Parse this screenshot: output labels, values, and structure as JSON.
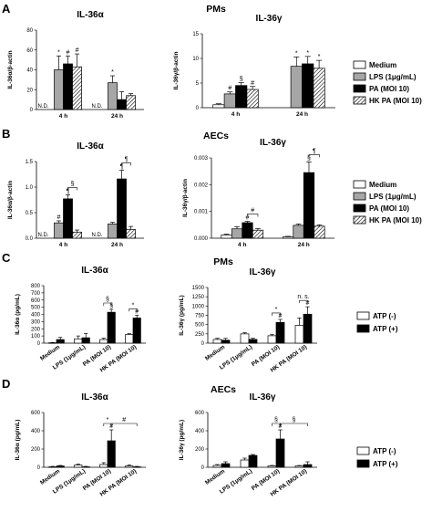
{
  "panel_labels": [
    "A",
    "B",
    "C",
    "D"
  ],
  "row_titles": [
    "PMs",
    "AECs",
    "PMs",
    "AECs"
  ],
  "patterns": {
    "Medium": "white",
    "LPS (1μg/mL)": "gray",
    "PA (MOI 10)": "black",
    "HK PA (MOI 10)": "hatch",
    "ATP (-)": "white",
    "ATP (+)": "black"
  },
  "legends": {
    "AB": [
      "Medium",
      "LPS (1μg/mL)",
      "PA (MOI 10)",
      "HK PA (MOI 10)"
    ],
    "CD": [
      "ATP (-)",
      "ATP (+)"
    ]
  },
  "chart_data": [
    {
      "id": "A1",
      "row": 0,
      "panel_label": "A",
      "type": "bar",
      "title": "IL-36α",
      "ylabel": "IL-36α/β-actin",
      "ylim": [
        0,
        80
      ],
      "yticks": [
        0,
        20,
        40,
        60,
        80
      ],
      "groups": [
        {
          "label": "4 h",
          "values": [
            null,
            40,
            46,
            43
          ],
          "errors": [
            null,
            14,
            8,
            13
          ],
          "marks": [
            "N.D.",
            "*",
            "#",
            "#"
          ]
        },
        {
          "label": "24 h",
          "values": [
            null,
            27,
            10,
            14
          ],
          "errors": [
            null,
            7,
            8,
            2
          ],
          "marks": [
            "N.D.",
            "*",
            "",
            ""
          ]
        }
      ]
    },
    {
      "id": "A2",
      "row": 0,
      "type": "bar",
      "title": "IL-36γ",
      "ylabel": "IL-36γ/β-actin",
      "ylim": [
        0,
        15
      ],
      "yticks": [
        0,
        5,
        10,
        15
      ],
      "groups": [
        {
          "label": "4 h",
          "values": [
            0.6,
            2.8,
            4.5,
            3.7
          ],
          "errors": [
            0.2,
            0.4,
            0.6,
            0.6
          ],
          "marks": [
            "",
            "#",
            "§",
            "#"
          ]
        },
        {
          "label": "24 h",
          "values": [
            null,
            8.4,
            8.9,
            8.0
          ],
          "errors": [
            null,
            1.9,
            1.5,
            1.6
          ],
          "marks": [
            "",
            "*",
            "*",
            "*"
          ]
        }
      ]
    },
    {
      "id": "B1",
      "row": 1,
      "panel_label": "B",
      "type": "bar",
      "title": "IL-36α",
      "ylabel": "IL-36α/β-actin",
      "ylim": [
        0,
        1.5
      ],
      "yticks": [
        0.0,
        0.5,
        1.0,
        1.5
      ],
      "groups": [
        {
          "label": "4 h",
          "values": [
            null,
            0.3,
            0.77,
            0.12
          ],
          "errors": [
            null,
            0.04,
            0.08,
            0.04
          ],
          "marks": [
            "N.D.",
            "#",
            "¶",
            ""
          ]
        },
        {
          "label": "24 h",
          "values": [
            null,
            0.28,
            1.16,
            0.17
          ],
          "errors": [
            null,
            0.03,
            0.17,
            0.06
          ],
          "marks": [
            "N.D.",
            "",
            "¶",
            ""
          ]
        }
      ],
      "brackets": [
        {
          "group": 0,
          "from": 2,
          "to": 3,
          "label": "§"
        },
        {
          "group": 1,
          "from": 2,
          "to": 3,
          "label": "¶"
        }
      ]
    },
    {
      "id": "B2",
      "row": 1,
      "type": "bar",
      "title": "IL-36γ",
      "ylabel": "IL-36γ/β-actin",
      "ylim": [
        0,
        0.003
      ],
      "yticks": [
        0.0,
        0.001,
        0.002,
        0.003
      ],
      "groups": [
        {
          "label": "4 h",
          "values": [
            0.00012,
            0.00035,
            0.00058,
            0.0003
          ],
          "errors": [
            3e-05,
            8e-05,
            5e-05,
            6e-05
          ],
          "marks": [
            "",
            "",
            "#",
            ""
          ]
        },
        {
          "label": "24 h",
          "values": [
            5e-05,
            0.00048,
            0.00245,
            0.00045
          ],
          "errors": [
            2e-05,
            5e-05,
            0.0004,
            5e-05
          ],
          "marks": [
            "",
            "",
            "§",
            ""
          ]
        }
      ],
      "brackets": [
        {
          "group": 0,
          "from": 2,
          "to": 3,
          "label": "#"
        },
        {
          "group": 1,
          "from": 2,
          "to": 3,
          "label": "¶"
        }
      ]
    },
    {
      "id": "C1",
      "row": 2,
      "panel_label": "C",
      "type": "bar",
      "title": "IL-36α",
      "ylabel": "IL-36α (pg/mL)",
      "ylim": [
        0,
        800
      ],
      "yticks": [
        0,
        100,
        200,
        300,
        400,
        500,
        600,
        700,
        800
      ],
      "categories": [
        "Medium",
        "LPS (1μg/mL)",
        "PA (MOI 10)",
        "HK PA (MOI 10)"
      ],
      "series": [
        {
          "name": "ATP (-)",
          "values": [
            5,
            60,
            50,
            120
          ],
          "errors": [
            5,
            40,
            20,
            12
          ]
        },
        {
          "name": "ATP (+)",
          "values": [
            50,
            75,
            430,
            350
          ],
          "errors": [
            30,
            60,
            40,
            40
          ]
        }
      ],
      "marks": [
        [
          "",
          ""
        ],
        [
          "",
          ""
        ],
        [
          "",
          "§"
        ],
        [
          "",
          "#"
        ]
      ],
      "brackets": [
        {
          "cat": 2,
          "label": "§"
        },
        {
          "cat": 3,
          "label": "*"
        }
      ]
    },
    {
      "id": "C2",
      "row": 2,
      "type": "bar",
      "title": "IL-36γ",
      "ylabel": "IL-36γ (pg/mL)",
      "ylim": [
        0,
        1500
      ],
      "yticks": [
        0,
        250,
        500,
        750,
        1000,
        1250,
        1500
      ],
      "categories": [
        "Medium",
        "LPS (1μg/mL)",
        "PA (MOI 10)",
        "HK PA (MOI 10)"
      ],
      "series": [
        {
          "name": "ATP (-)",
          "values": [
            100,
            250,
            200,
            480
          ],
          "errors": [
            30,
            30,
            30,
            200
          ]
        },
        {
          "name": "ATP (+)",
          "values": [
            80,
            100,
            560,
            780
          ],
          "errors": [
            50,
            30,
            80,
            200
          ]
        }
      ],
      "marks": [
        [
          "",
          ""
        ],
        [
          "",
          ""
        ],
        [
          "",
          "#"
        ],
        [
          "",
          "#"
        ]
      ],
      "brackets": [
        {
          "cat": 2,
          "label": "*"
        },
        {
          "cat": 3,
          "label": "n. s."
        }
      ]
    },
    {
      "id": "D1",
      "row": 3,
      "panel_label": "D",
      "type": "bar",
      "title": "IL-36α",
      "ylabel": "IL-36α (pg/mL)",
      "ylim": [
        0,
        600
      ],
      "yticks": [
        0,
        200,
        400,
        600
      ],
      "categories": [
        "Medium",
        "LPS (1μg/mL)",
        "PA (MOI 10)",
        "HK PA (MOI 10)"
      ],
      "series": [
        {
          "name": "ATP (-)",
          "values": [
            5,
            25,
            30,
            15
          ],
          "errors": [
            5,
            10,
            20,
            10
          ]
        },
        {
          "name": "ATP (+)",
          "values": [
            15,
            5,
            290,
            5
          ],
          "errors": [
            5,
            5,
            120,
            5
          ]
        }
      ],
      "marks": [
        [
          "",
          ""
        ],
        [
          "",
          ""
        ],
        [
          "",
          "#"
        ],
        [
          "",
          ""
        ]
      ],
      "brackets": [
        {
          "cat": 2,
          "label": "*"
        },
        {
          "cat_from": 2,
          "cat_to": 3,
          "label": "#"
        }
      ]
    },
    {
      "id": "D2",
      "row": 3,
      "type": "bar",
      "title": "IL-36γ",
      "ylabel": "IL-36γ (pg/mL)",
      "ylim": [
        0,
        600
      ],
      "yticks": [
        0,
        200,
        400,
        600
      ],
      "categories": [
        "Medium",
        "LPS (1μg/mL)",
        "PA (MOI 10)",
        "HK PA (MOI 10)"
      ],
      "series": [
        {
          "name": "ATP (-)",
          "values": [
            20,
            80,
            15,
            15
          ],
          "errors": [
            10,
            20,
            5,
            5
          ]
        },
        {
          "name": "ATP (+)",
          "values": [
            40,
            130,
            310,
            30
          ],
          "errors": [
            20,
            10,
            100,
            30
          ]
        }
      ],
      "marks": [
        [
          "",
          ""
        ],
        [
          "",
          ""
        ],
        [
          "",
          "#"
        ],
        [
          "",
          ""
        ]
      ],
      "brackets": [
        {
          "cat": 2,
          "label": "§"
        },
        {
          "cat_from": 2,
          "cat_to": 3,
          "label": "§"
        }
      ]
    }
  ]
}
